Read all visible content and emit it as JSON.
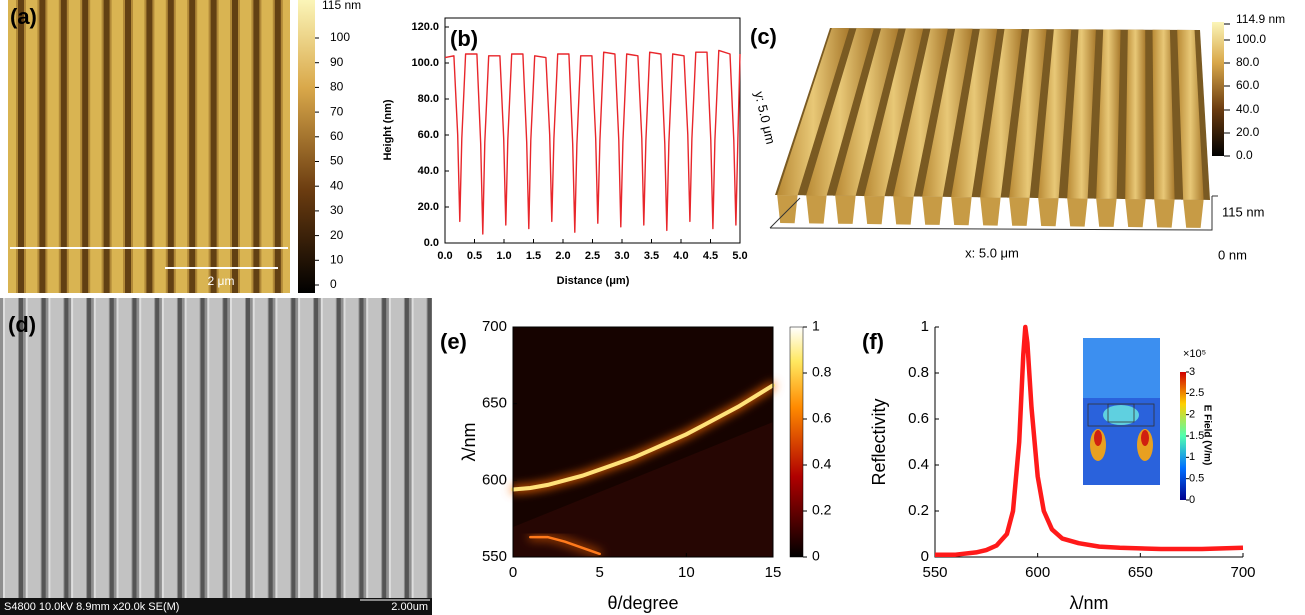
{
  "images": {
    "a": {
      "panel_label": "(a)",
      "colorbar_top": "115 nm",
      "colorbar_ticks": [
        100,
        90,
        80,
        70,
        60,
        50,
        40,
        30,
        20,
        10,
        0
      ],
      "scale_bar": "2 μm"
    },
    "c": {
      "panel_label": "(c)",
      "colorbar_labels": [
        "114.9 nm",
        "100.0",
        "80.0",
        "60.0",
        "40.0",
        "20.0",
        "0.0"
      ],
      "y_axis": "y: 5.0 μm",
      "x_axis": "x: 5.0 μm",
      "z_top": "115 nm",
      "z_bottom": "0 nm"
    },
    "d": {
      "panel_label": "(d)",
      "info": "S4800 10.0kV 8.9mm x20.0k SE(M)",
      "scale_bar": "2.00um"
    }
  },
  "chart_data": [
    {
      "type": "line",
      "panel_label": "(b)",
      "xlabel": "Distance (μm)",
      "ylabel": "Height (nm)",
      "color": "#e8262b",
      "xlim": [
        0,
        5
      ],
      "ylim": [
        0,
        125
      ],
      "xticks": [
        {
          "value": 0,
          "label": "0.0"
        },
        {
          "value": 0.5,
          "label": "0.5"
        },
        {
          "value": 1,
          "label": "1.0"
        },
        {
          "value": 1.5,
          "label": "1.5"
        },
        {
          "value": 2,
          "label": "2.0"
        },
        {
          "value": 2.5,
          "label": "2.5"
        },
        {
          "value": 3,
          "label": "3.0"
        },
        {
          "value": 3.5,
          "label": "3.5"
        },
        {
          "value": 4,
          "label": "4.0"
        },
        {
          "value": 4.5,
          "label": "4.5"
        },
        {
          "value": 5,
          "label": "5.0"
        }
      ],
      "yticks": [
        {
          "value": 0,
          "label": "0.0"
        },
        {
          "value": 20,
          "label": "20.0"
        },
        {
          "value": 40,
          "label": "40.0"
        },
        {
          "value": 60,
          "label": "60.0"
        },
        {
          "value": 80,
          "label": "80.0"
        },
        {
          "value": 100,
          "label": "100.0"
        },
        {
          "value": 120,
          "label": "120.0"
        }
      ],
      "x": [
        0,
        0.15,
        0.215,
        0.25,
        0.285,
        0.35,
        0.54,
        0.605,
        0.64,
        0.675,
        0.74,
        0.93,
        0.995,
        1.03,
        1.065,
        1.13,
        1.32,
        1.385,
        1.42,
        1.455,
        1.52,
        1.71,
        1.775,
        1.81,
        1.845,
        1.91,
        2.1,
        2.165,
        2.2,
        2.235,
        2.3,
        2.49,
        2.555,
        2.59,
        2.625,
        2.69,
        2.88,
        2.945,
        2.98,
        3.015,
        3.08,
        3.27,
        3.335,
        3.37,
        3.405,
        3.47,
        3.66,
        3.725,
        3.76,
        3.795,
        3.86,
        4.05,
        4.115,
        4.15,
        4.185,
        4.25,
        4.44,
        4.505,
        4.54,
        4.575,
        4.64,
        4.83,
        4.895,
        4.93,
        4.965,
        5
      ],
      "values": [
        103,
        104,
        60,
        12,
        58,
        105,
        105,
        55,
        5,
        56,
        104,
        104,
        58,
        10,
        57,
        105,
        105,
        56,
        8,
        57,
        104,
        103,
        60,
        12,
        58,
        105,
        105,
        55,
        6,
        55,
        104,
        104,
        58,
        11,
        57,
        106,
        105,
        57,
        9,
        56,
        105,
        104,
        58,
        10,
        57,
        106,
        105,
        55,
        7,
        56,
        105,
        104,
        60,
        12,
        58,
        106,
        106,
        57,
        8,
        57,
        107,
        105,
        57,
        10,
        58,
        105
      ]
    },
    {
      "type": "heatmap",
      "panel_label": "(e)",
      "xlabel": "θ/degree",
      "ylabel": "λ/nm",
      "xlim": [
        0,
        15
      ],
      "ylim": [
        550,
        700
      ],
      "xticks": [
        0,
        5,
        10,
        15
      ],
      "yticks": [
        550,
        600,
        650,
        700
      ],
      "colorbar_lim": [
        0,
        1
      ],
      "colorbar_ticks": [
        0,
        0.2,
        0.4,
        0.6,
        0.8,
        1
      ],
      "series": [
        {
          "color": "#ffe27a",
          "x": [
            0,
            1,
            2,
            3,
            4,
            5,
            6,
            7,
            8,
            9,
            10,
            11,
            12,
            13,
            14,
            15
          ],
          "values": [
            594,
            595,
            597,
            600,
            603,
            607,
            611,
            615,
            620,
            625,
            630,
            636,
            642,
            648,
            655,
            662
          ]
        },
        {
          "color": "#ff7a1a",
          "x": [
            1,
            2,
            3,
            4,
            5
          ],
          "values": [
            563,
            563,
            560,
            556,
            552
          ]
        }
      ]
    },
    {
      "type": "line",
      "panel_label": "(f)",
      "xlabel": "λ/nm",
      "ylabel": "Reflectivity",
      "color": "#ff1a1a",
      "xlim": [
        550,
        700
      ],
      "ylim": [
        0,
        1
      ],
      "xticks": [
        550,
        600,
        650,
        700
      ],
      "yticks": [
        0,
        0.2,
        0.4,
        0.6,
        0.8,
        1
      ],
      "x": [
        550,
        560,
        570,
        575,
        580,
        585,
        588,
        591,
        593,
        594,
        595,
        597,
        600,
        603,
        607,
        612,
        620,
        630,
        640,
        660,
        680,
        700
      ],
      "values": [
        0.01,
        0.01,
        0.02,
        0.03,
        0.05,
        0.1,
        0.2,
        0.5,
        0.88,
        1,
        0.93,
        0.65,
        0.35,
        0.2,
        0.12,
        0.08,
        0.06,
        0.045,
        0.04,
        0.035,
        0.035,
        0.04
      ],
      "inset": {
        "scale_label": "×10⁵",
        "colorbar_ticks": [
          3,
          2.5,
          2,
          1.5,
          1,
          0.5,
          0
        ],
        "colorbar_title": "E Field (V/m)"
      }
    }
  ]
}
